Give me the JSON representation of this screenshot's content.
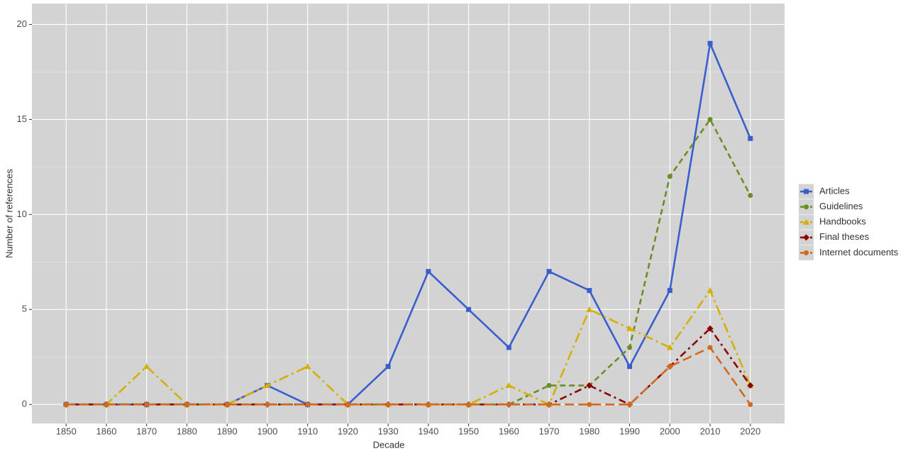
{
  "chart_data": {
    "type": "line",
    "x_label": "Decade",
    "y_label": "Number of references",
    "categories": [
      "1850",
      "1860",
      "1870",
      "1880",
      "1890",
      "1900",
      "1910",
      "1920",
      "1930",
      "1940",
      "1950",
      "1960",
      "1970",
      "1980",
      "1990",
      "2000",
      "2010",
      "2020"
    ],
    "ylim": [
      -1,
      21.1
    ],
    "yticks": [
      0,
      5,
      10,
      15,
      20
    ],
    "grid": true,
    "legend": "right",
    "series": [
      {
        "name": "Articles",
        "color": "#3a5fcd",
        "marker": "square",
        "linestyle": "solid",
        "values": [
          0,
          0,
          0,
          0,
          0,
          1,
          0,
          0,
          2,
          7,
          5,
          3,
          7,
          6,
          2,
          6,
          19,
          14
        ]
      },
      {
        "name": "Guidelines",
        "color": "#6b8e23",
        "marker": "circle",
        "linestyle": "dashed",
        "values": [
          0,
          0,
          0,
          0,
          0,
          0,
          0,
          0,
          0,
          0,
          0,
          0,
          1,
          1,
          3,
          12,
          15,
          11
        ]
      },
      {
        "name": "Handbooks",
        "color": "#d4b000",
        "marker": "triangle",
        "linestyle": "longdashdot",
        "values": [
          0,
          0,
          2,
          0,
          0,
          1,
          2,
          0,
          0,
          0,
          0,
          1,
          0,
          5,
          4,
          3,
          6,
          1
        ]
      },
      {
        "name": "Final theses",
        "color": "#8b0000",
        "marker": "diamond",
        "linestyle": "dotdash",
        "values": [
          0,
          0,
          0,
          0,
          0,
          0,
          0,
          0,
          0,
          0,
          0,
          0,
          0,
          1,
          0,
          2,
          4,
          1
        ]
      },
      {
        "name": "Internet documents",
        "color": "#d2691e",
        "marker": "circle",
        "linestyle": "longdash",
        "values": [
          0,
          0,
          0,
          0,
          0,
          0,
          0,
          0,
          0,
          0,
          0,
          0,
          0,
          0,
          0,
          2,
          3,
          0
        ]
      }
    ]
  }
}
